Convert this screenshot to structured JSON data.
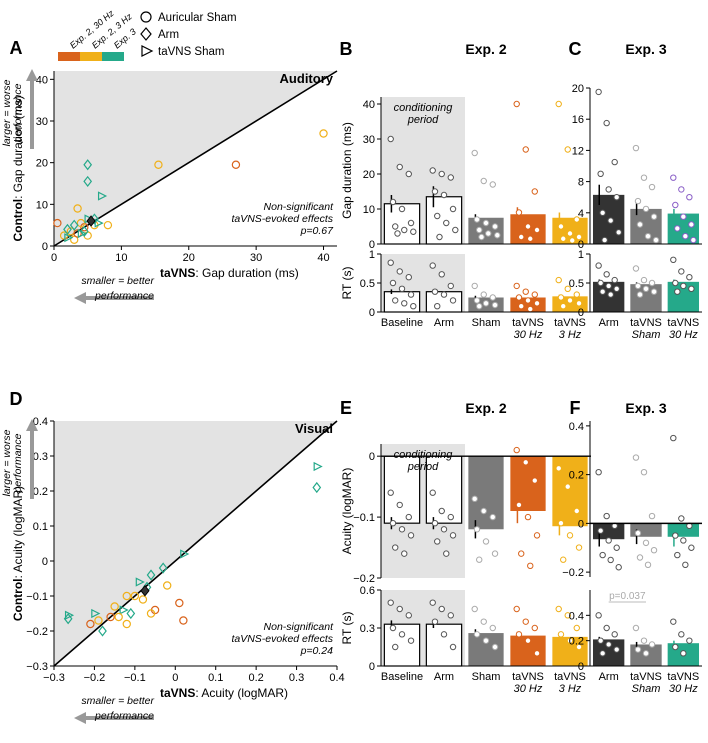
{
  "colors": {
    "exp2_30hz": "#d9631c",
    "exp2_3hz": "#f0b019",
    "exp3": "#25a98a",
    "dark": "#333333",
    "gray": "#7a7a7a",
    "exp3_violet": "#8a5fc7",
    "shade": "#e3e3e3"
  },
  "legend": {
    "swatches": [
      "Exp. 2, 30 Hz",
      "Exp. 2, 3 Hz",
      "Exp. 3"
    ],
    "shapes": [
      {
        "icon": "circle-icon",
        "label": "Auricular Sham"
      },
      {
        "icon": "diamond-icon",
        "label": "Arm"
      },
      {
        "icon": "triangle-icon",
        "label": "taVNS Sham"
      }
    ]
  },
  "chart_data": [
    {
      "panel": "A",
      "type": "scatter",
      "title": "Auditory",
      "xlabel_bold": "taVNS",
      "xlabel": ": Gap duration (ms)",
      "ylabel_bold": "Control",
      "ylabel": ": Gap duration (ms)",
      "xlim": [
        0,
        42
      ],
      "ylim": [
        0,
        42
      ],
      "xticks": [
        0,
        10,
        20,
        30,
        40
      ],
      "yticks": [
        0,
        10,
        20,
        30,
        40
      ],
      "arrow_up": [
        "larger = worse",
        "performance"
      ],
      "arrow_left": [
        "smaller = better",
        "performance"
      ],
      "note": [
        "Non-significant",
        "taVNS-evoked effects",
        "p=0.67"
      ],
      "mean_point": [
        5.5,
        6
      ],
      "points": [
        {
          "x": 40,
          "y": 27,
          "shape": "circle",
          "group": "exp2_3hz"
        },
        {
          "x": 27,
          "y": 19.5,
          "shape": "circle",
          "group": "exp2_30hz"
        },
        {
          "x": 15.5,
          "y": 19.5,
          "shape": "circle",
          "group": "exp2_3hz"
        },
        {
          "x": 5,
          "y": 19.5,
          "shape": "diamond",
          "group": "exp3"
        },
        {
          "x": 7,
          "y": 12,
          "shape": "triangle",
          "group": "exp3"
        },
        {
          "x": 5,
          "y": 15.5,
          "shape": "diamond",
          "group": "exp3"
        },
        {
          "x": 3.5,
          "y": 9,
          "shape": "circle",
          "group": "exp2_3hz"
        },
        {
          "x": 0.5,
          "y": 5.5,
          "shape": "circle",
          "group": "exp2_30hz"
        },
        {
          "x": 4.5,
          "y": 4.5,
          "shape": "circle",
          "group": "exp2_30hz"
        },
        {
          "x": 2.5,
          "y": 3.5,
          "shape": "circle",
          "group": "exp2_3hz"
        },
        {
          "x": 4,
          "y": 5.5,
          "shape": "circle",
          "group": "exp2_3hz"
        },
        {
          "x": 6,
          "y": 5,
          "shape": "circle",
          "group": "exp2_3hz"
        },
        {
          "x": 5,
          "y": 2.5,
          "shape": "circle",
          "group": "exp2_3hz"
        },
        {
          "x": 3,
          "y": 1.5,
          "shape": "circle",
          "group": "exp2_3hz"
        },
        {
          "x": 1.5,
          "y": 2.5,
          "shape": "circle",
          "group": "exp2_3hz"
        },
        {
          "x": 8,
          "y": 5,
          "shape": "circle",
          "group": "exp2_3hz"
        },
        {
          "x": 3.5,
          "y": 3,
          "shape": "circle",
          "group": "exp2_30hz"
        },
        {
          "x": 2,
          "y": 4,
          "shape": "diamond",
          "group": "exp3"
        },
        {
          "x": 3,
          "y": 5,
          "shape": "diamond",
          "group": "exp3"
        },
        {
          "x": 6,
          "y": 6.5,
          "shape": "diamond",
          "group": "exp3"
        },
        {
          "x": 4.5,
          "y": 3.5,
          "shape": "diamond",
          "group": "exp3"
        },
        {
          "x": 6.5,
          "y": 5.5,
          "shape": "triangle",
          "group": "exp3"
        },
        {
          "x": 5,
          "y": 6.5,
          "shape": "triangle",
          "group": "exp3"
        },
        {
          "x": 2,
          "y": 2,
          "shape": "triangle",
          "group": "exp3"
        },
        {
          "x": 4,
          "y": 3,
          "shape": "triangle",
          "group": "exp3"
        }
      ]
    },
    {
      "panel": "D",
      "type": "scatter",
      "title": "Visual",
      "xlabel_bold": "taVNS",
      "xlabel": ": Acuity (logMAR)",
      "ylabel_bold": "Control",
      "ylabel": ": Acuity (logMAR)",
      "xlim": [
        -0.3,
        0.4
      ],
      "ylim": [
        -0.3,
        0.4
      ],
      "xticks": [
        -0.3,
        -0.2,
        -0.1,
        0,
        0.1,
        0.2,
        0.3,
        0.4
      ],
      "xtick_labels": [
        "−0.3",
        "−0.2",
        "−0.1",
        "0",
        "0.1",
        "0.2",
        "0.3",
        "0.4"
      ],
      "yticks": [
        -0.3,
        -0.2,
        -0.1,
        0,
        0.1,
        0.2,
        0.3,
        0.4
      ],
      "ytick_labels": [
        "−0.3",
        "−0.2",
        "−0.1",
        "0",
        "0.1",
        "0.2",
        "0.3",
        "0.4"
      ],
      "arrow_up": [
        "larger = worse",
        "performance"
      ],
      "arrow_left": [
        "smaller = better",
        "performance"
      ],
      "note": [
        "Non-significant",
        "taVNS-evoked effects",
        "p=0.24"
      ],
      "mean_point": [
        -0.075,
        -0.085
      ],
      "points": [
        {
          "x": 0.35,
          "y": 0.27,
          "shape": "triangle",
          "group": "exp3"
        },
        {
          "x": 0.35,
          "y": 0.21,
          "shape": "diamond",
          "group": "exp3"
        },
        {
          "x": 0.02,
          "y": 0.02,
          "shape": "triangle",
          "group": "exp3"
        },
        {
          "x": -0.03,
          "y": -0.02,
          "shape": "diamond",
          "group": "exp3"
        },
        {
          "x": -0.06,
          "y": -0.04,
          "shape": "diamond",
          "group": "exp3"
        },
        {
          "x": -0.09,
          "y": -0.06,
          "shape": "triangle",
          "group": "exp3"
        },
        {
          "x": -0.02,
          "y": -0.07,
          "shape": "circle",
          "group": "exp2_3hz"
        },
        {
          "x": -0.12,
          "y": -0.1,
          "shape": "circle",
          "group": "exp2_3hz"
        },
        {
          "x": -0.1,
          "y": -0.1,
          "shape": "circle",
          "group": "exp2_3hz"
        },
        {
          "x": -0.08,
          "y": -0.11,
          "shape": "circle",
          "group": "exp2_3hz"
        },
        {
          "x": 0.01,
          "y": -0.12,
          "shape": "circle",
          "group": "exp2_30hz"
        },
        {
          "x": -0.15,
          "y": -0.13,
          "shape": "circle",
          "group": "exp2_3hz"
        },
        {
          "x": -0.05,
          "y": -0.14,
          "shape": "circle",
          "group": "exp2_30hz"
        },
        {
          "x": -0.13,
          "y": -0.14,
          "shape": "triangle",
          "group": "exp3"
        },
        {
          "x": -0.06,
          "y": -0.15,
          "shape": "circle",
          "group": "exp2_3hz"
        },
        {
          "x": -0.11,
          "y": -0.15,
          "shape": "diamond",
          "group": "exp3"
        },
        {
          "x": -0.16,
          "y": -0.16,
          "shape": "circle",
          "group": "exp2_30hz"
        },
        {
          "x": -0.14,
          "y": -0.16,
          "shape": "circle",
          "group": "exp2_3hz"
        },
        {
          "x": 0.02,
          "y": -0.17,
          "shape": "circle",
          "group": "exp2_30hz"
        },
        {
          "x": -0.19,
          "y": -0.17,
          "shape": "circle",
          "group": "exp2_3hz"
        },
        {
          "x": -0.21,
          "y": -0.18,
          "shape": "circle",
          "group": "exp2_30hz"
        },
        {
          "x": -0.12,
          "y": -0.18,
          "shape": "circle",
          "group": "exp2_3hz"
        },
        {
          "x": -0.2,
          "y": -0.15,
          "shape": "triangle",
          "group": "exp3"
        },
        {
          "x": -0.18,
          "y": -0.2,
          "shape": "diamond",
          "group": "exp3"
        },
        {
          "x": -0.265,
          "y": -0.155,
          "shape": "triangle",
          "group": "exp3"
        },
        {
          "x": -0.265,
          "y": -0.165,
          "shape": "diamond",
          "group": "exp3"
        },
        {
          "x": -0.07,
          "y": -0.075,
          "shape": "diamond",
          "group": "exp3"
        }
      ]
    },
    {
      "panel": "B",
      "type": "bar",
      "title": "Exp. 2",
      "categories": [
        [
          "Baseline"
        ],
        [
          "Arm"
        ],
        [
          "Sham"
        ],
        [
          "taVNS",
          "30 Hz"
        ],
        [
          "taVNS",
          "3 Hz"
        ]
      ],
      "italic_second_line": true,
      "conditioning_label": [
        "conditioning",
        "period"
      ],
      "conditioning_span": [
        0,
        1
      ],
      "colors": [
        "white",
        "white",
        "gray",
        "exp2_30hz",
        "exp2_3hz"
      ],
      "top": {
        "ylabel": "Gap duration (ms)",
        "ylim": [
          0,
          42
        ],
        "yticks": [
          0,
          10,
          20,
          30,
          40
        ],
        "means": [
          11.5,
          13.5,
          7.5,
          8.5,
          7.5
        ],
        "errors": [
          2.5,
          3,
          1,
          2,
          1.5
        ],
        "points": [
          [
            30,
            22,
            20,
            12,
            10,
            6,
            5,
            4,
            3.5,
            3
          ],
          [
            21,
            20,
            19,
            15,
            14,
            10,
            8,
            6,
            4,
            2
          ],
          [
            26,
            18,
            17,
            7,
            6,
            5,
            4,
            3,
            2.5,
            2
          ],
          [
            40,
            27,
            15,
            9,
            5,
            4,
            2,
            1.5
          ],
          [
            40,
            27,
            7,
            5,
            3,
            2,
            1.5,
            1
          ]
        ]
      },
      "bottom": {
        "ylabel": "RT (s)",
        "ylim": [
          0,
          1
        ],
        "yticks": [
          0,
          0.5,
          1
        ],
        "means": [
          0.35,
          0.35,
          0.25,
          0.25,
          0.27
        ],
        "errors": [
          0.04,
          0.04,
          0.03,
          0.03,
          0.03
        ],
        "points": [
          [
            0.85,
            0.7,
            0.6,
            0.5,
            0.4,
            0.3,
            0.2,
            0.15,
            0.1
          ],
          [
            0.8,
            0.65,
            0.45,
            0.35,
            0.3,
            0.2,
            0.1
          ],
          [
            0.45,
            0.3,
            0.25,
            0.2,
            0.15,
            0.12,
            0.1
          ],
          [
            0.45,
            0.35,
            0.3,
            0.25,
            0.2,
            0.15,
            0.1,
            0.05
          ],
          [
            0.55,
            0.4,
            0.3,
            0.25,
            0.2,
            0.15,
            0.1
          ]
        ]
      }
    },
    {
      "panel": "C",
      "type": "bar",
      "title": "Exp. 3",
      "categories": [
        [
          "Arm"
        ],
        [
          "taVNS",
          "Sham"
        ],
        [
          "taVNS",
          "30 Hz"
        ]
      ],
      "italic_second_line": true,
      "colors": [
        "dark",
        "gray",
        "exp3"
      ],
      "top": {
        "ylim": [
          0,
          20
        ],
        "yticks": [
          0,
          4,
          8,
          12,
          16,
          20
        ],
        "means": [
          6.3,
          4.5,
          3.9
        ],
        "errors": [
          1.3,
          0.8,
          0.6
        ],
        "points": [
          [
            19.5,
            15.5,
            10.5,
            9,
            7,
            6,
            4,
            3,
            1.5,
            0.5
          ],
          [
            12.3,
            8.5,
            7.3,
            5.5,
            4.5,
            3.5,
            2.5,
            1,
            0.5
          ],
          [
            8.5,
            7,
            6,
            5,
            3.5,
            2.5,
            2,
            1,
            0.5
          ]
        ],
        "violet_overlay": true
      },
      "bottom": {
        "ylim": [
          0,
          1
        ],
        "yticks": [
          0,
          0.5,
          1
        ],
        "means": [
          0.52,
          0.48,
          0.52
        ],
        "errors": [
          0.04,
          0.03,
          0.04
        ],
        "points": [
          [
            0.8,
            0.65,
            0.55,
            0.5,
            0.45,
            0.4,
            0.35,
            0.3
          ],
          [
            0.75,
            0.55,
            0.5,
            0.45,
            0.4,
            0.35,
            0.3
          ],
          [
            0.9,
            0.7,
            0.6,
            0.5,
            0.45,
            0.4,
            0.35
          ]
        ]
      }
    },
    {
      "panel": "E",
      "type": "bar",
      "title": "Exp. 2",
      "categories": [
        [
          "Baseline"
        ],
        [
          "Arm"
        ],
        [
          "Sham"
        ],
        [
          "taVNS",
          "30 Hz"
        ],
        [
          "taVNS",
          "3 Hz"
        ]
      ],
      "italic_second_line": true,
      "conditioning_label": [
        "conditioning",
        "period"
      ],
      "conditioning_span": [
        0,
        1
      ],
      "colors": [
        "white",
        "white",
        "gray",
        "exp2_30hz",
        "exp2_3hz"
      ],
      "top": {
        "ylabel": "Acuity (logMAR)",
        "ylim": [
          -0.2,
          0.02
        ],
        "yticks": [
          -0.2,
          -0.1,
          0
        ],
        "ytick_labels": [
          "−0.2",
          "−0.1",
          "0"
        ],
        "means": [
          -0.11,
          -0.11,
          -0.12,
          -0.09,
          -0.115
        ],
        "errors": [
          0.01,
          0.01,
          0.015,
          0.02,
          0.015
        ],
        "points": [
          [
            -0.06,
            -0.08,
            -0.1,
            -0.11,
            -0.12,
            -0.13,
            -0.15,
            -0.16
          ],
          [
            -0.06,
            -0.09,
            -0.1,
            -0.11,
            -0.12,
            -0.13,
            -0.14,
            -0.16
          ],
          [
            -0.07,
            -0.09,
            -0.1,
            -0.12,
            -0.14,
            -0.16,
            -0.17
          ],
          [
            0.01,
            -0.01,
            -0.04,
            -0.08,
            -0.1,
            -0.13,
            -0.16,
            -0.18
          ],
          [
            -0.02,
            -0.05,
            -0.09,
            -0.11,
            -0.13,
            -0.15,
            -0.17
          ]
        ]
      },
      "bottom": {
        "ylabel": "RT (s)",
        "ylim": [
          0,
          0.6
        ],
        "yticks": [
          0,
          0.3,
          0.6
        ],
        "ytick_labels": [
          "0",
          "0.3",
          "0.6"
        ],
        "means": [
          0.33,
          0.33,
          0.26,
          0.24,
          0.23
        ],
        "errors": [
          0.03,
          0.03,
          0.03,
          0.03,
          0.03
        ],
        "points": [
          [
            0.5,
            0.45,
            0.4,
            0.3,
            0.25,
            0.2,
            0.15
          ],
          [
            0.5,
            0.45,
            0.4,
            0.35,
            0.25,
            0.15
          ],
          [
            0.45,
            0.35,
            0.3,
            0.25,
            0.2,
            0.15
          ],
          [
            0.45,
            0.35,
            0.3,
            0.25,
            0.2,
            0.1
          ],
          [
            0.45,
            0.4,
            0.3,
            0.25,
            0.2,
            0.15
          ]
        ]
      }
    },
    {
      "panel": "F",
      "type": "bar",
      "title": "Exp. 3",
      "categories": [
        [
          "Arm"
        ],
        [
          "taVNS",
          "Sham"
        ],
        [
          "taVNS",
          "30 Hz"
        ]
      ],
      "italic_second_line": true,
      "colors": [
        "dark",
        "gray",
        "exp3"
      ],
      "top": {
        "ylim": [
          -0.22,
          0.42
        ],
        "yticks": [
          -0.2,
          0,
          0.2,
          0.4
        ],
        "ytick_labels": [
          "−0.2",
          "0",
          "0.2",
          "0.4"
        ],
        "means": [
          -0.065,
          -0.055,
          -0.055
        ],
        "errors": [
          0.03,
          0.03,
          0.04
        ],
        "points": [
          [
            0.21,
            0.03,
            -0.01,
            -0.03,
            -0.07,
            -0.1,
            -0.13,
            -0.15,
            -0.18
          ],
          [
            0.27,
            0.21,
            0.03,
            -0.04,
            -0.08,
            -0.11,
            -0.14,
            -0.17
          ],
          [
            0.35,
            0.02,
            -0.01,
            -0.05,
            -0.07,
            -0.1,
            -0.13,
            -0.17
          ]
        ]
      },
      "bottom": {
        "ylim": [
          0,
          0.6
        ],
        "yticks": [
          0,
          0.2,
          0.4
        ],
        "ytick_labels": [
          "0",
          "0.2",
          "0.4"
        ],
        "means": [
          0.21,
          0.17,
          0.18
        ],
        "errors": [
          0.02,
          0.02,
          0.02
        ],
        "points": [
          [
            0.4,
            0.3,
            0.25,
            0.2,
            0.17,
            0.13,
            0.1
          ],
          [
            0.3,
            0.2,
            0.17,
            0.13,
            0.1
          ],
          [
            0.35,
            0.25,
            0.2,
            0.15,
            0.1
          ]
        ]
      },
      "sig_label": "p=0.037"
    }
  ]
}
